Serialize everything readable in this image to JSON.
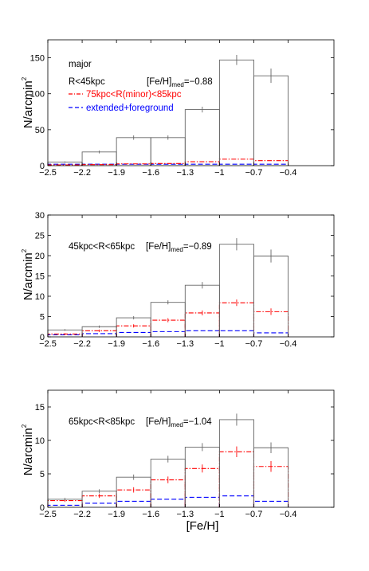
{
  "figure": {
    "xlabel": "[Fe/H]",
    "ylabel_main": "N/arcmin",
    "ylabel_sup": "2"
  },
  "chart_data": [
    {
      "type": "bar",
      "panel": "top",
      "ylim": [
        0,
        175
      ],
      "yticks": [
        0,
        50,
        100,
        150
      ],
      "xlim": [
        -2.5,
        0
      ],
      "xticks": [
        -2.5,
        -2.2,
        -1.9,
        -1.6,
        -1.3,
        -1,
        -0.7,
        -0.4
      ],
      "xtick_labels": [
        "−2.5",
        "−2.2",
        "−1.9",
        "−1.6",
        "−1.3",
        "−1",
        "−0.7",
        "−0.4"
      ],
      "bin_edges": [
        -2.5,
        -2.2,
        -1.9,
        -1.6,
        -1.3,
        -1.0,
        -0.7,
        -0.4
      ],
      "annotations": {
        "line1": "major",
        "line2": "R<45kpc",
        "feh_prefix": "[Fe/H]",
        "feh_sub": "med",
        "feh_value": "=−0.88",
        "legend_red": "75kpc<R(minor)<85kpc",
        "legend_blue": "extended+foreground"
      },
      "series": [
        {
          "name": "",
          "color": "#666666",
          "style": "solid",
          "values": [
            5,
            19,
            39,
            39,
            78,
            147,
            125
          ],
          "errors": [
            1,
            2,
            3,
            3,
            4,
            7,
            10
          ]
        },
        {
          "name": "75kpc<R(minor)<85kpc",
          "color": "#ff0000",
          "style": "dashdot",
          "values": [
            1,
            1.5,
            2.5,
            3,
            5.5,
            9,
            7
          ],
          "errors": [
            0,
            0,
            0,
            0,
            0,
            0,
            0
          ]
        },
        {
          "name": "extended+foreground",
          "color": "#0000ff",
          "style": "dashed",
          "values": [
            2,
            2,
            2,
            2,
            2,
            2,
            2
          ],
          "errors": [
            0,
            0,
            0,
            0,
            0,
            0,
            0
          ]
        }
      ]
    },
    {
      "type": "bar",
      "panel": "middle",
      "ylim": [
        0,
        30
      ],
      "yticks": [
        0,
        5,
        10,
        15,
        20,
        25,
        30
      ],
      "xlim": [
        -2.5,
        0
      ],
      "xticks": [
        -2.5,
        -2.2,
        -1.9,
        -1.6,
        -1.3,
        -1,
        -0.7,
        -0.4
      ],
      "xtick_labels": [
        "−2.5",
        "−2.2",
        "−1.9",
        "−1.6",
        "−1.3",
        "−1",
        "−0.7",
        "−0.4"
      ],
      "bin_edges": [
        -2.5,
        -2.2,
        -1.9,
        -1.6,
        -1.3,
        -1.0,
        -0.7,
        -0.4
      ],
      "annotations": {
        "line1": "45kpc<R<65kpc",
        "feh_prefix": "[Fe/H]",
        "feh_sub": "med",
        "feh_value": "=−0.89"
      },
      "series": [
        {
          "name": "",
          "color": "#666666",
          "style": "solid",
          "values": [
            1.7,
            2.5,
            4.7,
            8.5,
            12.7,
            22.8,
            19.9
          ],
          "errors": [
            0.2,
            0.3,
            0.4,
            0.5,
            0.8,
            1.5,
            1.6
          ]
        },
        {
          "name": "",
          "color": "#ff0000",
          "style": "dashdot",
          "values": [
            0.7,
            1.5,
            2.7,
            4.1,
            5.9,
            8.4,
            6.2
          ],
          "errors": [
            0.2,
            0.3,
            0.4,
            0.5,
            0.6,
            0.8,
            0.8
          ]
        },
        {
          "name": "",
          "color": "#0000ff",
          "style": "dashed",
          "values": [
            0.5,
            0.8,
            1.1,
            1.3,
            1.5,
            1.5,
            1.0
          ],
          "errors": [
            0,
            0,
            0,
            0,
            0,
            0,
            0
          ]
        }
      ]
    },
    {
      "type": "bar",
      "panel": "bottom",
      "ylim": [
        0,
        17.5
      ],
      "yticks": [
        0,
        5,
        10,
        15
      ],
      "xlim": [
        -2.5,
        0
      ],
      "xticks": [
        -2.5,
        -2.2,
        -1.9,
        -1.6,
        -1.3,
        -1,
        -0.7,
        -0.4
      ],
      "xtick_labels": [
        "−2.5",
        "−2.2",
        "−1.9",
        "−1.6",
        "−1.3",
        "−1",
        "−0.7",
        "−0.4"
      ],
      "bin_edges": [
        -2.5,
        -2.2,
        -1.9,
        -1.6,
        -1.3,
        -1.0,
        -0.7,
        -0.4
      ],
      "annotations": {
        "line1": "65kpc<R<85kpc",
        "feh_prefix": "[Fe/H]",
        "feh_sub": "med",
        "feh_value": "=−1.04"
      },
      "series": [
        {
          "name": "",
          "color": "#666666",
          "style": "solid",
          "values": [
            1.2,
            2.4,
            4.5,
            7.2,
            9.0,
            13.1,
            8.9
          ],
          "errors": [
            0.2,
            0.3,
            0.4,
            0.5,
            0.6,
            0.9,
            0.8
          ]
        },
        {
          "name": "",
          "color": "#ff0000",
          "style": "dashdot",
          "values": [
            1.0,
            1.7,
            2.6,
            4.1,
            5.8,
            8.3,
            6.1
          ],
          "errors": [
            0.2,
            0.3,
            0.4,
            0.5,
            0.6,
            0.8,
            0.8
          ]
        },
        {
          "name": "",
          "color": "#0000ff",
          "style": "dashed",
          "values": [
            0.3,
            0.6,
            0.9,
            1.2,
            1.5,
            1.7,
            0.9
          ],
          "errors": [
            0,
            0,
            0,
            0,
            0,
            0,
            0
          ]
        }
      ]
    }
  ]
}
